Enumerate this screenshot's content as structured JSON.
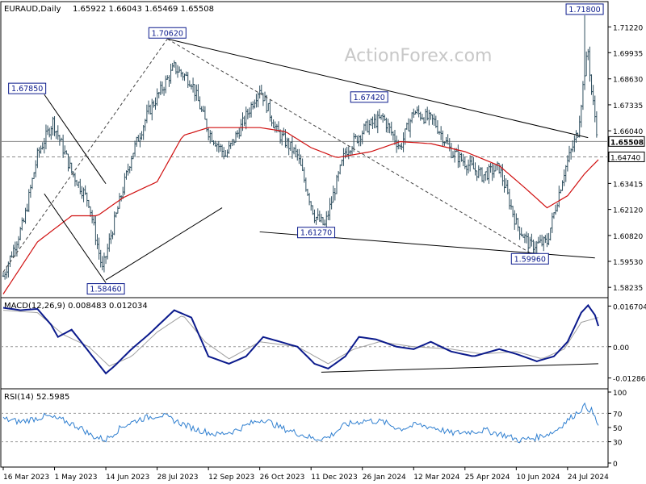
{
  "header": {
    "symbol": "EURAUD,Daily",
    "ohlc": "1.65922 1.66043 1.65469 1.65508"
  },
  "watermark": "ActionForex.com",
  "colors": {
    "bars": "#2f4f5f",
    "ma": "#d01010",
    "macd": "#0b1a8c",
    "signal": "#a0a0a0",
    "rsi": "#2f7fd0",
    "label_border": "#0b1a8c",
    "label_bg": "#ffffff",
    "price_tag_border": "#000000"
  },
  "chart_data": [
    {
      "type": "candlestick",
      "title": "EURAUD,Daily",
      "xlabel": "",
      "ylabel": "",
      "ylim": [
        1.578,
        1.724
      ],
      "y_tick_labels": [
        "1.71220",
        "1.69935",
        "1.68630",
        "1.67335",
        "1.66040",
        "1.64740",
        "1.63415",
        "1.62120",
        "1.60820",
        "1.59530",
        "1.58235"
      ],
      "y_ticks": [
        1.7122,
        1.69935,
        1.6863,
        1.67335,
        1.6604,
        1.6474,
        1.63415,
        1.6212,
        1.6082,
        1.5953,
        1.58235
      ],
      "x_tick_labels": [
        "16 Mar 2023",
        "1 May 2023",
        "14 Jun 2023",
        "28 Jul 2023",
        "12 Sep 2023",
        "26 Oct 2023",
        "11 Dec 2023",
        "26 Jan 2024",
        "12 Mar 2024",
        "25 Apr 2024",
        "10 Jun 2024",
        "24 Jul 2024"
      ],
      "x_tick_bar_index": [
        0,
        30,
        60,
        90,
        120,
        150,
        180,
        210,
        240,
        270,
        300,
        330
      ],
      "bar_count": 348,
      "close_anchors": [
        [
          0,
          1.588
        ],
        [
          12,
          1.615
        ],
        [
          20,
          1.648
        ],
        [
          29,
          1.665
        ],
        [
          40,
          1.64
        ],
        [
          50,
          1.625
        ],
        [
          58,
          1.591
        ],
        [
          62,
          1.605
        ],
        [
          75,
          1.648
        ],
        [
          85,
          1.67
        ],
        [
          100,
          1.692
        ],
        [
          110,
          1.685
        ],
        [
          120,
          1.66
        ],
        [
          130,
          1.648
        ],
        [
          140,
          1.664
        ],
        [
          150,
          1.682
        ],
        [
          160,
          1.66
        ],
        [
          172,
          1.648
        ],
        [
          182,
          1.618
        ],
        [
          188,
          1.613
        ],
        [
          200,
          1.65
        ],
        [
          212,
          1.662
        ],
        [
          222,
          1.667
        ],
        [
          232,
          1.652
        ],
        [
          240,
          1.67
        ],
        [
          252,
          1.665
        ],
        [
          262,
          1.65
        ],
        [
          280,
          1.638
        ],
        [
          290,
          1.642
        ],
        [
          300,
          1.614
        ],
        [
          308,
          1.603
        ],
        [
          318,
          1.605
        ],
        [
          328,
          1.64
        ],
        [
          336,
          1.66
        ],
        [
          340,
          1.69
        ],
        [
          342,
          1.7
        ],
        [
          344,
          1.68
        ],
        [
          348,
          1.6551
        ]
      ],
      "ma_anchors": [
        [
          0,
          1.579
        ],
        [
          20,
          1.605
        ],
        [
          40,
          1.618
        ],
        [
          55,
          1.618
        ],
        [
          70,
          1.627
        ],
        [
          90,
          1.635
        ],
        [
          105,
          1.658
        ],
        [
          120,
          1.662
        ],
        [
          150,
          1.662
        ],
        [
          165,
          1.66
        ],
        [
          180,
          1.652
        ],
        [
          195,
          1.647
        ],
        [
          215,
          1.65
        ],
        [
          232,
          1.655
        ],
        [
          250,
          1.654
        ],
        [
          270,
          1.65
        ],
        [
          290,
          1.643
        ],
        [
          305,
          1.632
        ],
        [
          318,
          1.622
        ],
        [
          330,
          1.628
        ],
        [
          340,
          1.639
        ],
        [
          348,
          1.646
        ]
      ],
      "labels": [
        {
          "text": "1.67850",
          "bar": 14,
          "price": 1.6785
        },
        {
          "text": "1.58460",
          "bar": 60,
          "price": 1.5846
        },
        {
          "text": "1.70620",
          "bar": 96,
          "price": 1.7062
        },
        {
          "text": "1.61270",
          "bar": 183,
          "price": 1.6127
        },
        {
          "text": "1.67420",
          "bar": 214,
          "price": 1.6742
        },
        {
          "text": "1.59960",
          "bar": 308,
          "price": 1.5996
        },
        {
          "text": "1.71800",
          "bar": 340,
          "price": 1.718
        }
      ],
      "trendlines": [
        {
          "style": "solid",
          "points": [
            [
              96,
              1.7062
            ],
            [
              342,
              1.657
            ]
          ]
        },
        {
          "style": "solid",
          "points": [
            [
              150,
              1.61
            ],
            [
              346,
              1.597
            ]
          ]
        },
        {
          "style": "solid",
          "points": [
            [
              24,
              1.6785
            ],
            [
              60,
              1.634
            ]
          ]
        },
        {
          "style": "solid",
          "points": [
            [
              24,
              1.629
            ],
            [
              60,
              1.5846
            ]
          ]
        },
        {
          "style": "solid",
          "points": [
            [
              60,
              1.586
            ],
            [
              128,
              1.622
            ]
          ]
        },
        {
          "style": "dashed",
          "points": [
            [
              0,
              1.59
            ],
            [
              96,
              1.7062
            ]
          ]
        },
        {
          "style": "dashed",
          "points": [
            [
              96,
              1.7062
            ],
            [
              308,
              1.5996
            ]
          ]
        }
      ],
      "hlines": [
        {
          "price": 1.65508,
          "style": "solid",
          "label": "1.65508",
          "tag": "price"
        },
        {
          "price": 1.6474,
          "style": "dashed",
          "label": "1.64740",
          "tag": "level"
        }
      ],
      "peak": {
        "bar": 340,
        "high": 1.718
      }
    },
    {
      "type": "line",
      "title": "MACD(12,26,9) 0.008483 0.012034",
      "ylim": [
        -0.016,
        0.0185
      ],
      "y_tick_labels": [
        "0.016704",
        "0.00",
        "-0.012869"
      ],
      "y_ticks": [
        0.016704,
        0.0,
        -0.012869
      ],
      "macd_anchors": [
        [
          0,
          0.016
        ],
        [
          10,
          0.015
        ],
        [
          20,
          0.0155
        ],
        [
          28,
          0.009
        ],
        [
          32,
          0.004
        ],
        [
          40,
          0.007
        ],
        [
          50,
          -0.002
        ],
        [
          60,
          -0.011
        ],
        [
          65,
          -0.008
        ],
        [
          75,
          -0.001
        ],
        [
          85,
          0.005
        ],
        [
          100,
          0.015
        ],
        [
          110,
          0.012
        ],
        [
          120,
          -0.004
        ],
        [
          132,
          -0.007
        ],
        [
          142,
          -0.004
        ],
        [
          152,
          0.004
        ],
        [
          162,
          0.002
        ],
        [
          172,
          0.0
        ],
        [
          182,
          -0.007
        ],
        [
          190,
          -0.009
        ],
        [
          200,
          -0.004
        ],
        [
          208,
          0.004
        ],
        [
          218,
          0.003
        ],
        [
          230,
          0.0
        ],
        [
          240,
          -0.001
        ],
        [
          250,
          0.002
        ],
        [
          262,
          -0.002
        ],
        [
          275,
          -0.004
        ],
        [
          290,
          -0.001
        ],
        [
          300,
          -0.003
        ],
        [
          312,
          -0.006
        ],
        [
          322,
          -0.004
        ],
        [
          330,
          0.002
        ],
        [
          338,
          0.014
        ],
        [
          342,
          0.017
        ],
        [
          346,
          0.013
        ],
        [
          348,
          0.0085
        ]
      ],
      "signal_anchors": [
        [
          0,
          0.015
        ],
        [
          20,
          0.014
        ],
        [
          35,
          0.005
        ],
        [
          50,
          0.0
        ],
        [
          62,
          -0.008
        ],
        [
          75,
          -0.004
        ],
        [
          90,
          0.006
        ],
        [
          105,
          0.013
        ],
        [
          118,
          0.002
        ],
        [
          132,
          -0.005
        ],
        [
          150,
          0.002
        ],
        [
          172,
          0.0
        ],
        [
          190,
          -0.007
        ],
        [
          205,
          -0.001
        ],
        [
          220,
          0.002
        ],
        [
          240,
          0.0
        ],
        [
          262,
          -0.001
        ],
        [
          280,
          -0.003
        ],
        [
          300,
          -0.002
        ],
        [
          315,
          -0.005
        ],
        [
          328,
          -0.001
        ],
        [
          338,
          0.01
        ],
        [
          348,
          0.012
        ]
      ],
      "trendlines": [
        {
          "style": "solid",
          "points": [
            [
              186,
              -0.0105
            ],
            [
              348,
              -0.007
            ]
          ]
        }
      ]
    },
    {
      "type": "line",
      "title": "RSI(14) 52.5985",
      "ylim": [
        0,
        100
      ],
      "y_tick_labels": [
        "100",
        "70",
        "50",
        "30",
        "0"
      ],
      "y_ticks": [
        100,
        70,
        50,
        30,
        0
      ],
      "rsi_anchors": [
        [
          0,
          62
        ],
        [
          10,
          58
        ],
        [
          25,
          66
        ],
        [
          35,
          60
        ],
        [
          45,
          50
        ],
        [
          52,
          38
        ],
        [
          60,
          33
        ],
        [
          70,
          52
        ],
        [
          80,
          62
        ],
        [
          92,
          68
        ],
        [
          100,
          60
        ],
        [
          112,
          48
        ],
        [
          125,
          40
        ],
        [
          135,
          45
        ],
        [
          145,
          56
        ],
        [
          152,
          62
        ],
        [
          162,
          50
        ],
        [
          172,
          42
        ],
        [
          182,
          34
        ],
        [
          190,
          36
        ],
        [
          200,
          54
        ],
        [
          212,
          60
        ],
        [
          222,
          58
        ],
        [
          232,
          48
        ],
        [
          242,
          54
        ],
        [
          252,
          50
        ],
        [
          262,
          42
        ],
        [
          272,
          44
        ],
        [
          282,
          46
        ],
        [
          292,
          40
        ],
        [
          302,
          32
        ],
        [
          312,
          36
        ],
        [
          322,
          44
        ],
        [
          330,
          60
        ],
        [
          336,
          72
        ],
        [
          340,
          80
        ],
        [
          344,
          74
        ],
        [
          348,
          53
        ]
      ],
      "hlines": [
        {
          "level": 70,
          "style": "dashed"
        },
        {
          "level": 30,
          "style": "dashed"
        }
      ]
    }
  ]
}
